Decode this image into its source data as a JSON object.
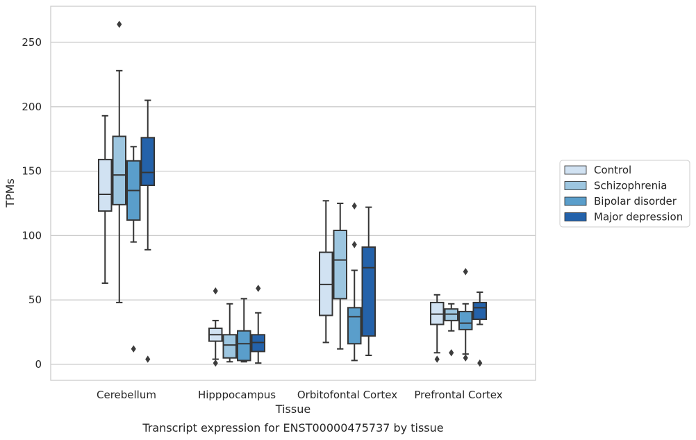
{
  "chart_data": {
    "type": "box",
    "caption": "Transcript expression for ENST00000475737 by tissue",
    "xlabel": "Tissue",
    "ylabel": "TPMs",
    "ylim": [
      -12,
      278
    ],
    "yticks": [
      0,
      50,
      100,
      150,
      200,
      250
    ],
    "grid": true,
    "legend_position": "right",
    "categories": [
      "Cerebellum",
      "Hipppocampus",
      "Orbitofontal Cortex",
      "Prefrontal Cortex"
    ],
    "series": [
      {
        "name": "Control",
        "color": "#d1e2f2",
        "boxes": [
          {
            "whisker_low": 63,
            "q1": 119,
            "median": 132,
            "q3": 159,
            "whisker_high": 193,
            "outliers": []
          },
          {
            "whisker_low": 4,
            "q1": 18,
            "median": 23,
            "q3": 28,
            "whisker_high": 34,
            "outliers": [
              1,
              57
            ]
          },
          {
            "whisker_low": 17,
            "q1": 38,
            "median": 62,
            "q3": 87,
            "whisker_high": 127,
            "outliers": []
          },
          {
            "whisker_low": 9,
            "q1": 31,
            "median": 39,
            "q3": 48,
            "whisker_high": 54,
            "outliers": [
              4
            ]
          }
        ]
      },
      {
        "name": "Schizophrenia",
        "color": "#9dc6e0",
        "boxes": [
          {
            "whisker_low": 48,
            "q1": 124,
            "median": 147,
            "q3": 177,
            "whisker_high": 228,
            "outliers": [
              264
            ]
          },
          {
            "whisker_low": 2,
            "q1": 5,
            "median": 15,
            "q3": 23,
            "whisker_high": 47,
            "outliers": []
          },
          {
            "whisker_low": 12,
            "q1": 51,
            "median": 81,
            "q3": 104,
            "whisker_high": 125,
            "outliers": []
          },
          {
            "whisker_low": 26,
            "q1": 34,
            "median": 39,
            "q3": 43,
            "whisker_high": 47,
            "outliers": [
              9
            ]
          }
        ]
      },
      {
        "name": "Bipolar disorder",
        "color": "#5a9ecb",
        "boxes": [
          {
            "whisker_low": 95,
            "q1": 112,
            "median": 135,
            "q3": 158,
            "whisker_high": 169,
            "outliers": [
              12
            ]
          },
          {
            "whisker_low": 2,
            "q1": 3,
            "median": 16,
            "q3": 26,
            "whisker_high": 51,
            "outliers": []
          },
          {
            "whisker_low": 3,
            "q1": 16,
            "median": 37,
            "q3": 44,
            "whisker_high": 73,
            "outliers": [
              93,
              123
            ]
          },
          {
            "whisker_low": 8,
            "q1": 27,
            "median": 32,
            "q3": 41,
            "whisker_high": 47,
            "outliers": [
              5,
              72
            ]
          }
        ]
      },
      {
        "name": "Major depression",
        "color": "#2462aa",
        "boxes": [
          {
            "whisker_low": 89,
            "q1": 139,
            "median": 149,
            "q3": 176,
            "whisker_high": 205,
            "outliers": [
              4
            ]
          },
          {
            "whisker_low": 1,
            "q1": 10,
            "median": 17,
            "q3": 23,
            "whisker_high": 40,
            "outliers": [
              59
            ]
          },
          {
            "whisker_low": 7,
            "q1": 22,
            "median": 75,
            "q3": 91,
            "whisker_high": 122,
            "outliers": []
          },
          {
            "whisker_low": 31,
            "q1": 35,
            "median": 44,
            "q3": 48,
            "whisker_high": 56,
            "outliers": [
              1
            ]
          }
        ]
      }
    ]
  }
}
